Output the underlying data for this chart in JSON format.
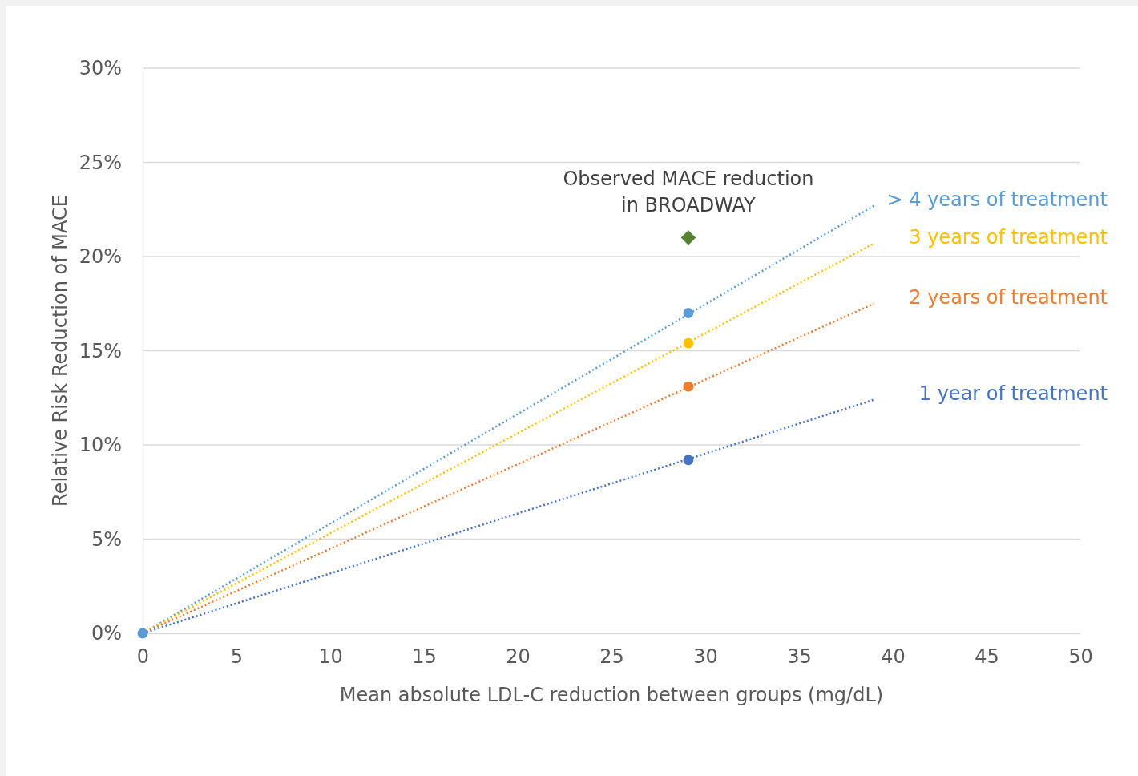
{
  "chart_data": {
    "type": "line",
    "xlabel": "Mean absolute LDL-C reduction between groups (mg/dL)",
    "ylabel": "Relative Risk Reduction  of MACE",
    "xlim": [
      0,
      50
    ],
    "xticks": [
      0,
      5,
      10,
      15,
      20,
      25,
      30,
      35,
      40,
      45,
      50
    ],
    "ylim": [
      0,
      30
    ],
    "yticks": [
      {
        "value": 0,
        "label": "0%"
      },
      {
        "value": 5,
        "label": "5%"
      },
      {
        "value": 10,
        "label": "10%"
      },
      {
        "value": 15,
        "label": "15%"
      },
      {
        "value": 20,
        "label": "20%"
      },
      {
        "value": 25,
        "label": "25%"
      },
      {
        "value": 30,
        "label": "30%"
      }
    ],
    "grid": "y",
    "series": [
      {
        "name": "> 4 years of treatment",
        "type": "line",
        "color": "#5b9bd5",
        "x": [
          0,
          39
        ],
        "values": [
          0,
          22.7
        ],
        "line_style": "dotted",
        "marker": "none"
      },
      {
        "name": "3 years of treatment",
        "type": "line",
        "color": "#ffc000",
        "x": [
          0,
          39
        ],
        "values": [
          0,
          20.7
        ],
        "line_style": "dotted",
        "marker": "none"
      },
      {
        "name": "2 years of treatment",
        "type": "line",
        "color": "#ed7d31",
        "x": [
          0,
          39
        ],
        "values": [
          0,
          17.5
        ],
        "line_style": "dotted",
        "marker": "none"
      },
      {
        "name": "1 year of treatment",
        "type": "line",
        "color": "#4472c4",
        "x": [
          0,
          39
        ],
        "values": [
          0,
          12.4
        ],
        "line_style": "dotted",
        "marker": "none"
      },
      {
        "type": "scatter",
        "color": "#4472c4",
        "x": [
          29.1
        ],
        "values": [
          9.2
        ],
        "marker": "circle"
      },
      {
        "type": "scatter",
        "color": "#ed7d31",
        "x": [
          29.1
        ],
        "values": [
          13.1
        ],
        "marker": "circle"
      },
      {
        "type": "scatter",
        "color": "#ffc000",
        "x": [
          29.1
        ],
        "values": [
          15.4
        ],
        "marker": "circle"
      },
      {
        "type": "scatter",
        "color": "#5b9bd5",
        "x": [
          0,
          29.1
        ],
        "values": [
          0,
          17.0
        ],
        "marker": "circle"
      },
      {
        "type": "scatter",
        "color": "#548235",
        "x": [
          29.1
        ],
        "values": [
          21.0
        ],
        "marker": "diamond"
      }
    ],
    "annotations": [
      {
        "text": "Observed MACE reduction\nin BROADWAY",
        "x": 29.1,
        "y": 21.0
      }
    ]
  }
}
